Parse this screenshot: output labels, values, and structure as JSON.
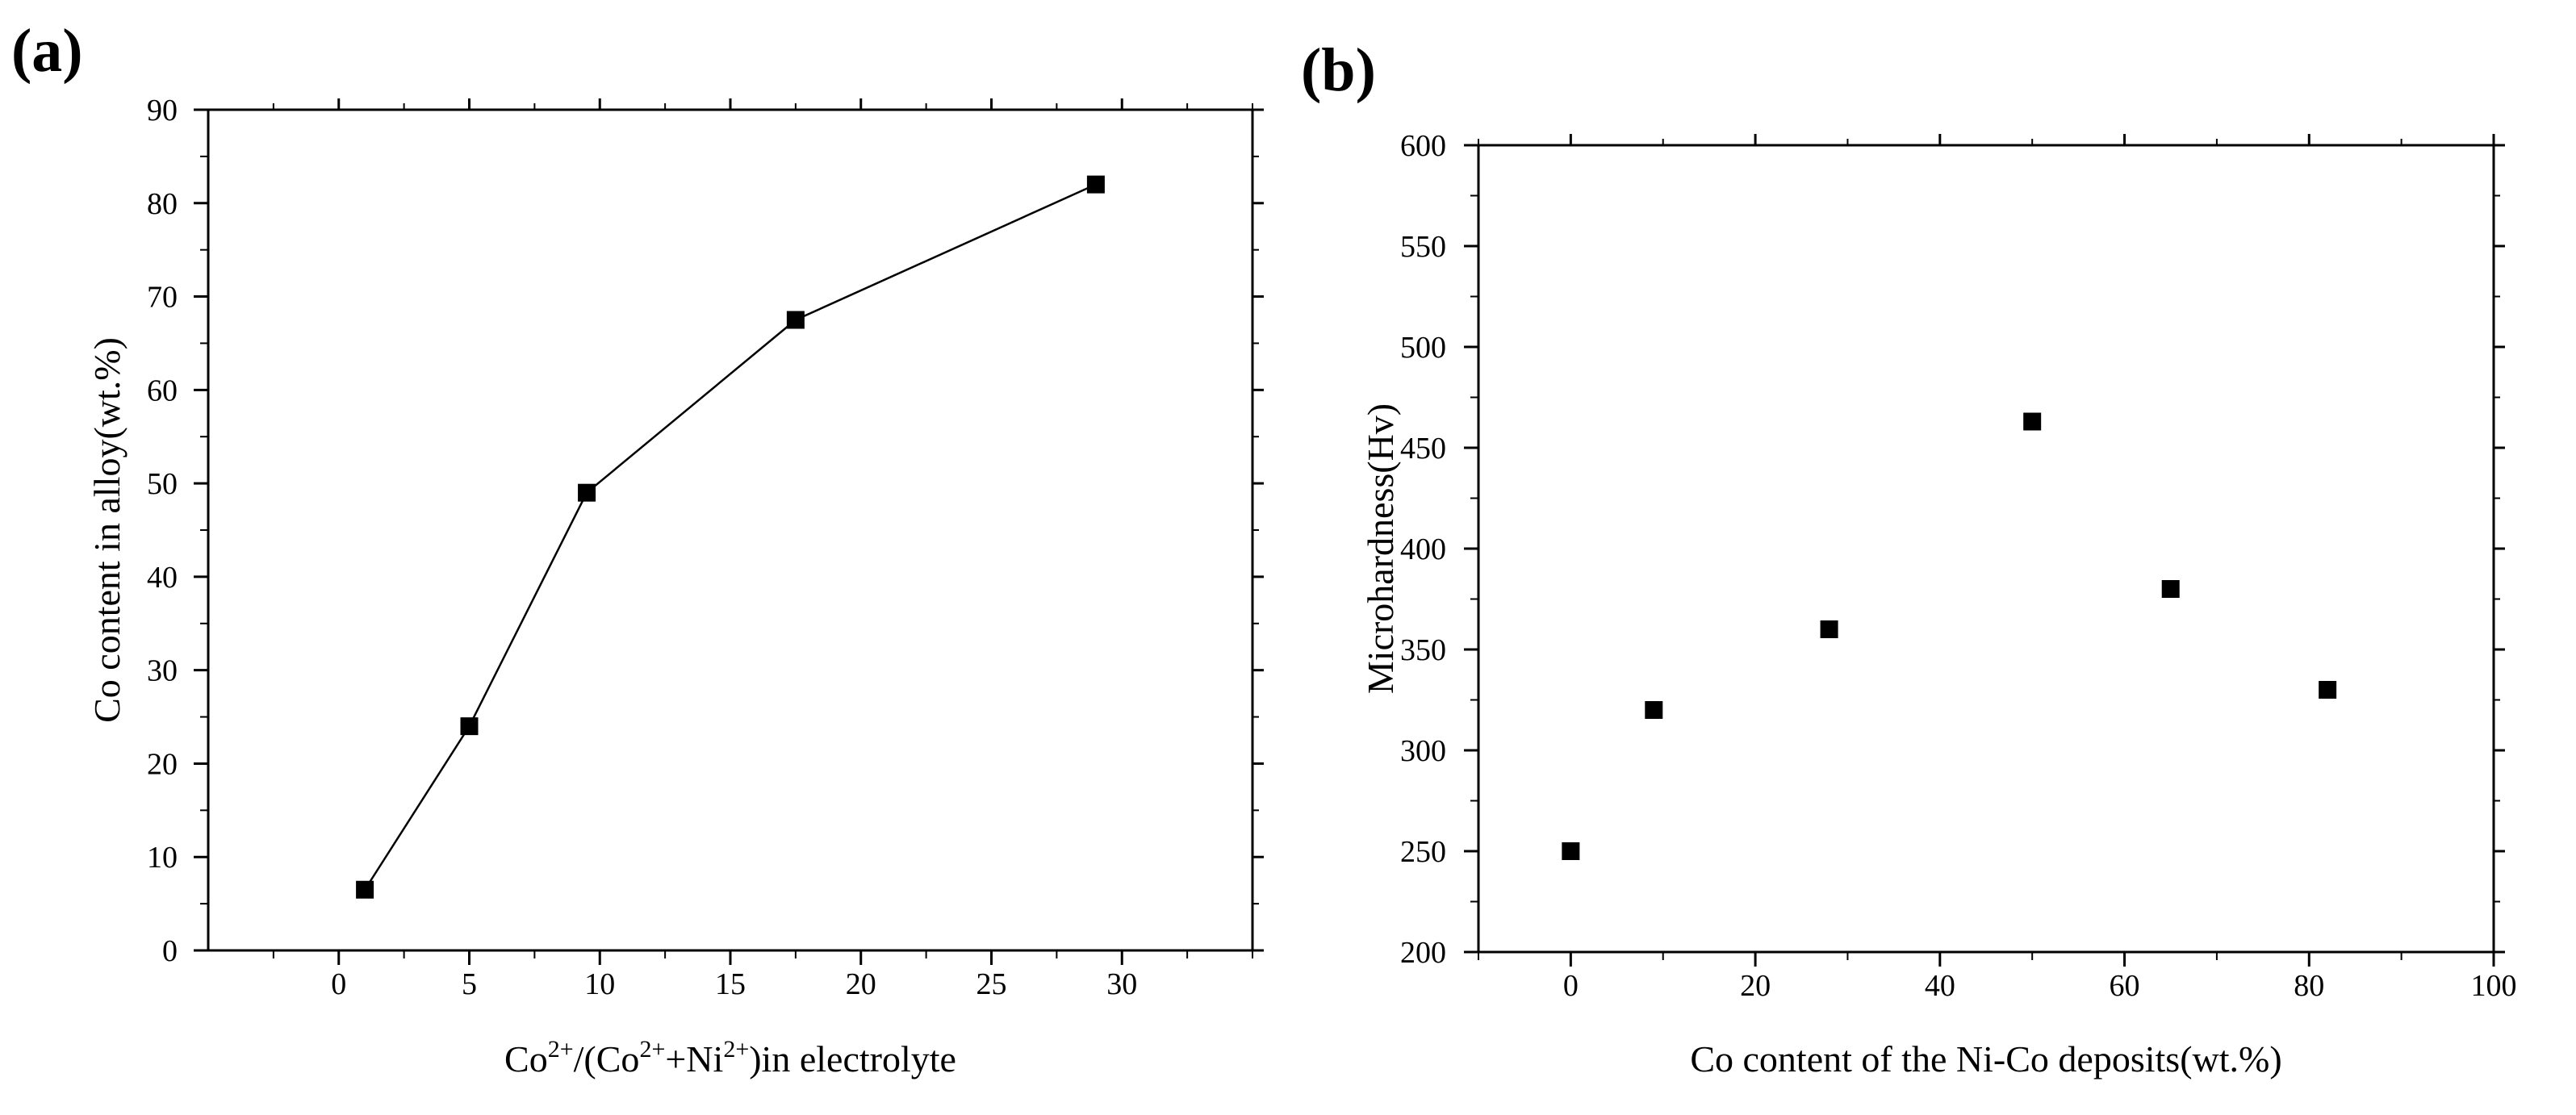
{
  "chart_data": [
    {
      "type": "line",
      "panel_label": "(a)",
      "title": "",
      "xlabel": {
        "parts": [
          {
            "text": "Co",
            "sup": false
          },
          {
            "text": "2+",
            "sup": true
          },
          {
            "text": "/(Co",
            "sup": false
          },
          {
            "text": "2+",
            "sup": true
          },
          {
            "text": "+Ni",
            "sup": false
          },
          {
            "text": "2+",
            "sup": true
          },
          {
            "text": ")in electrolyte",
            "sup": false
          }
        ]
      },
      "ylabel": "Co content in alloy(wt.%)",
      "xlim": [
        -5,
        35
      ],
      "ylim": [
        0,
        90
      ],
      "xticks": [
        0,
        5,
        10,
        15,
        20,
        25,
        30
      ],
      "yticks": [
        0,
        10,
        20,
        30,
        40,
        50,
        60,
        70,
        80,
        90
      ],
      "marker": "square",
      "connected": true,
      "x": [
        1,
        5,
        9.5,
        17.5,
        29
      ],
      "y": [
        6.5,
        24,
        49,
        67.5,
        82
      ]
    },
    {
      "type": "scatter",
      "panel_label": "(b)",
      "title": "",
      "xlabel": "Co content of the Ni-Co deposits(wt.%)",
      "ylabel": "Microhardness(Hv)",
      "xlim": [
        -10,
        100
      ],
      "ylim": [
        200,
        600
      ],
      "xticks": [
        0,
        20,
        40,
        60,
        80,
        100
      ],
      "yticks": [
        200,
        250,
        300,
        350,
        400,
        450,
        500,
        550,
        600
      ],
      "marker": "square",
      "connected": false,
      "x": [
        0,
        9,
        28,
        50,
        65,
        82
      ],
      "y": [
        250,
        320,
        360,
        463,
        380,
        330
      ]
    }
  ]
}
